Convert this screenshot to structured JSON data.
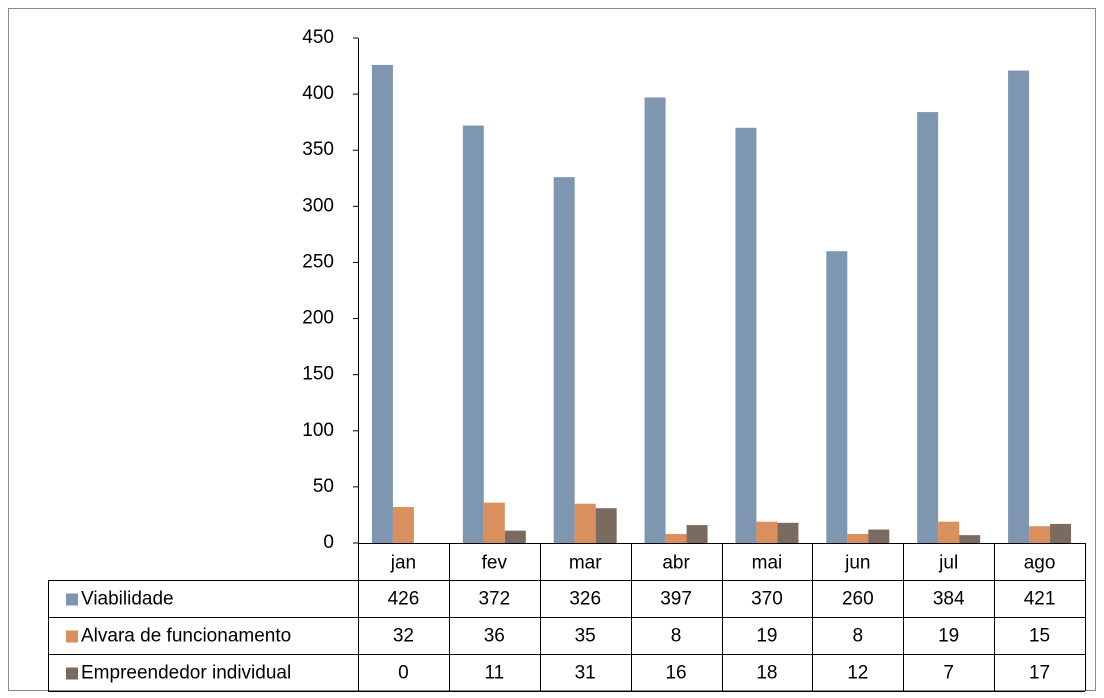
{
  "chart_data": {
    "type": "bar",
    "categories": [
      "jan",
      "fev",
      "mar",
      "abr",
      "mai",
      "jun",
      "jul",
      "ago"
    ],
    "series": [
      {
        "name": "Viabilidade",
        "color": "#7f96b0",
        "values": [
          426,
          372,
          326,
          397,
          370,
          260,
          384,
          421
        ]
      },
      {
        "name": "Alvara de funcionamento",
        "color": "#d9905e",
        "values": [
          32,
          36,
          35,
          8,
          19,
          8,
          19,
          15
        ]
      },
      {
        "name": "Empreendedor individual",
        "color": "#7a6a60",
        "values": [
          0,
          11,
          31,
          16,
          18,
          12,
          7,
          17
        ]
      }
    ],
    "ylim": [
      0,
      450
    ],
    "yticks": [
      0,
      50,
      100,
      150,
      200,
      250,
      300,
      350,
      400,
      450
    ],
    "grid": false,
    "data_table": true
  }
}
